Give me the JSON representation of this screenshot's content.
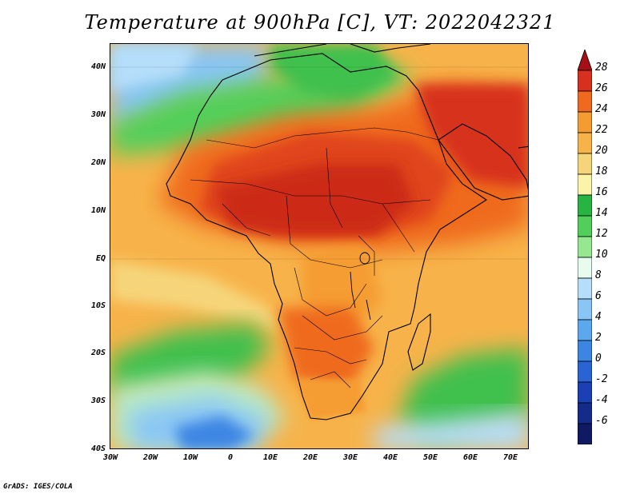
{
  "title": "Temperature at 900hPa [C], VT: 2022042321",
  "credit": "GrADS: IGES/COLA",
  "axes": {
    "lat_labels": [
      "40N",
      "30N",
      "20N",
      "10N",
      "EQ",
      "10S",
      "20S",
      "30S",
      "40S"
    ],
    "lon_labels": [
      "30W",
      "20W",
      "10W",
      "0",
      "10E",
      "20E",
      "30E",
      "40E",
      "50E",
      "60E",
      "70E"
    ]
  },
  "colorbar": {
    "labels": [
      "28",
      "26",
      "24",
      "22",
      "20",
      "18",
      "16",
      "14",
      "12",
      "10",
      "8",
      "6",
      "4",
      "2",
      "0",
      "-2",
      "-4",
      "-6"
    ],
    "colors": [
      "#a50f15",
      "#d7301f",
      "#ef6a1e",
      "#f59c30",
      "#f7b34a",
      "#f6d57a",
      "#fbf3a8",
      "#27b441",
      "#52cf5a",
      "#96e890",
      "#e8fbef",
      "#b5defa",
      "#8ac6f5",
      "#5aa8ee",
      "#3c86e3",
      "#2a63d3",
      "#1b3fb5",
      "#142b8a",
      "#0f1a63",
      "#d8dcf8"
    ]
  }
}
